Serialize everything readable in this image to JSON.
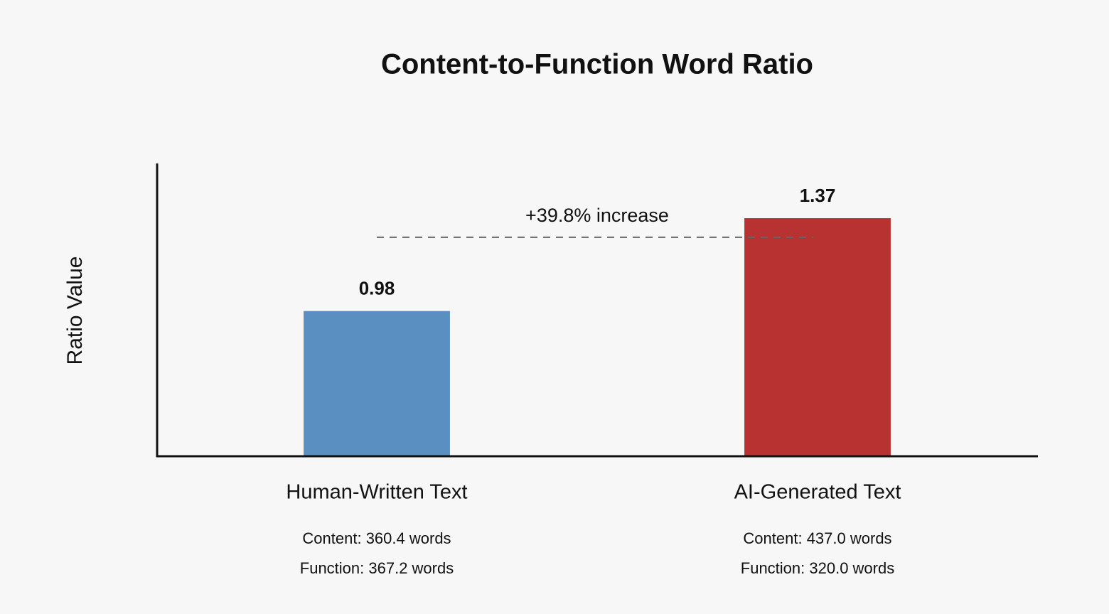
{
  "chart_data": {
    "type": "bar",
    "title": "Content-to-Function Word Ratio",
    "y_label": "Ratio Value",
    "categories": [
      "Human-Written Text",
      "AI-Generated Text"
    ],
    "values": [
      0.98,
      1.37
    ],
    "colors": [
      "#5a8fc1",
      "#b83232"
    ],
    "details": [
      [
        "Content: 360.4 words",
        "Function: 367.2 words"
      ],
      [
        "Content: 437.0 words",
        "Function: 320.0 words"
      ]
    ],
    "annotation": {
      "text": "+39.8% increase",
      "y": 1.29
    },
    "ylim": [
      0.37,
      1.6
    ],
    "grid": false
  }
}
